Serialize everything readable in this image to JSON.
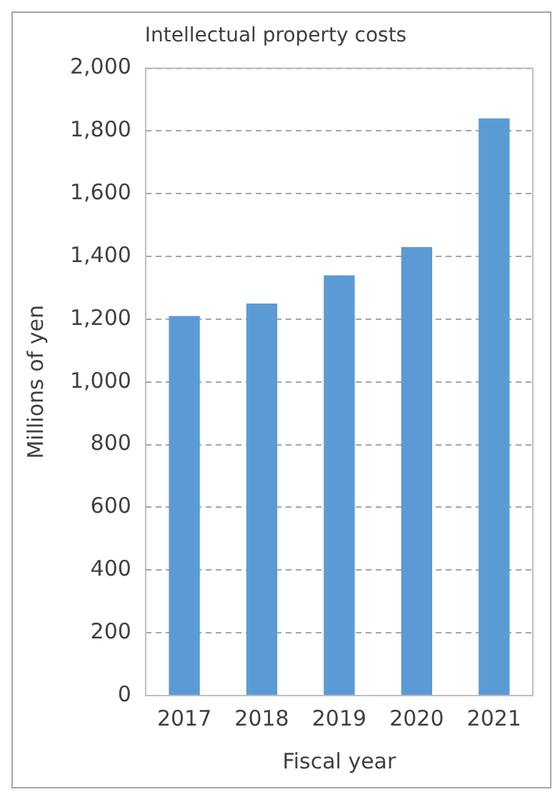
{
  "chart_data": {
    "type": "bar",
    "title": "Intellectual property costs",
    "xlabel": "Fiscal year",
    "ylabel": "Millions of yen",
    "categories": [
      "2017",
      "2018",
      "2019",
      "2020",
      "2021"
    ],
    "values": [
      1210,
      1250,
      1340,
      1430,
      1840
    ],
    "color": "#5b9bd5",
    "ylim": [
      0,
      2000
    ],
    "yticks": [
      {
        "value": 0,
        "label": "0"
      },
      {
        "value": 200,
        "label": "200"
      },
      {
        "value": 400,
        "label": "400"
      },
      {
        "value": 600,
        "label": "600"
      },
      {
        "value": 800,
        "label": "800"
      },
      {
        "value": 1000,
        "label": "1,000"
      },
      {
        "value": 1200,
        "label": "1,200"
      },
      {
        "value": 1400,
        "label": "1,400"
      },
      {
        "value": 1600,
        "label": "1,600"
      },
      {
        "value": 1800,
        "label": "1,800"
      },
      {
        "value": 2000,
        "label": "2,000"
      }
    ],
    "grid": "y"
  }
}
